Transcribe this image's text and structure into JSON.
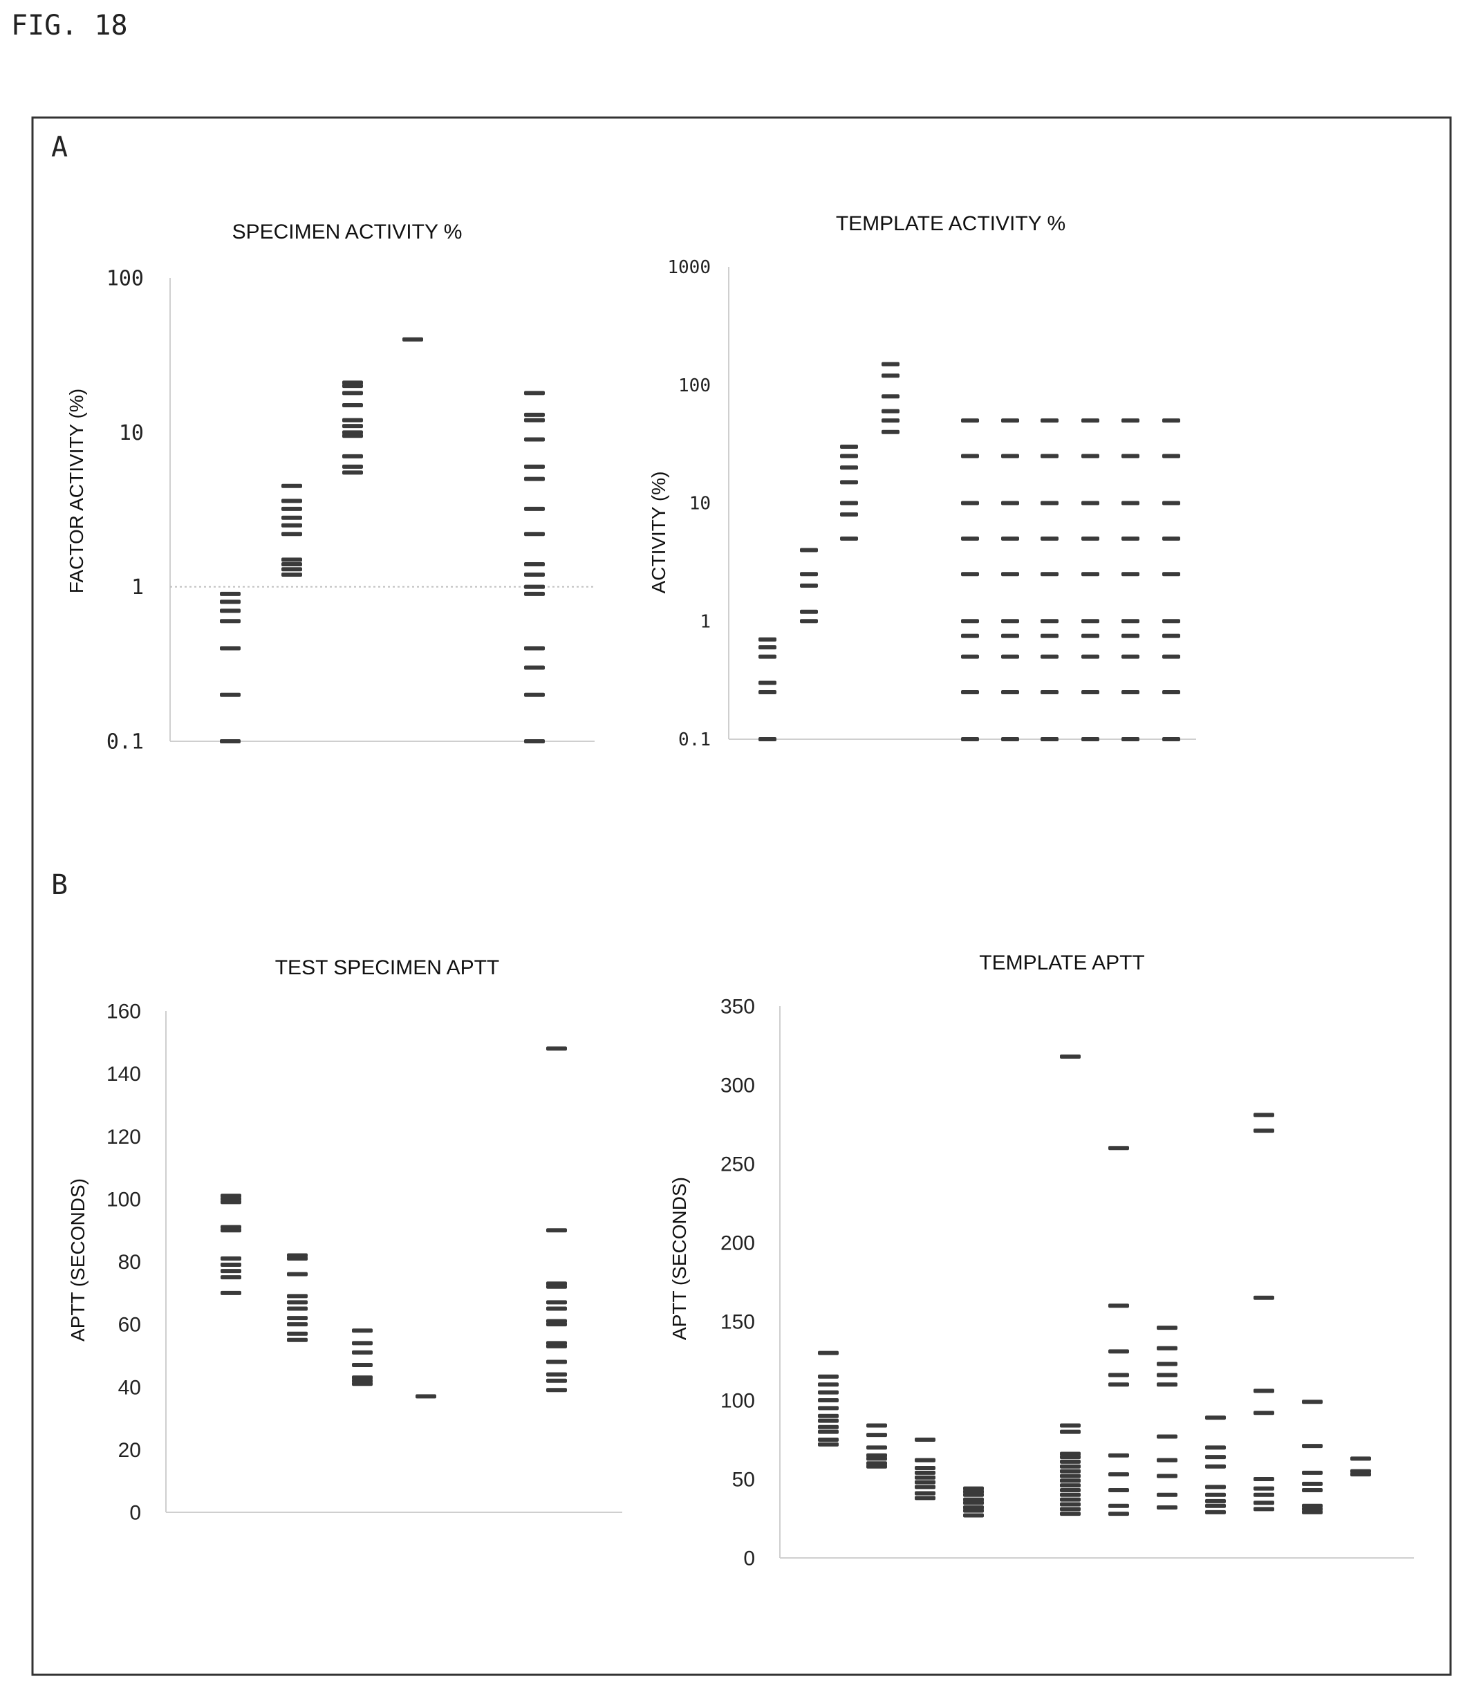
{
  "figure_label": "FIG. 18",
  "panels": [
    {
      "letter": "A"
    },
    {
      "letter": "B"
    }
  ],
  "chart_data": [
    {
      "type": "scatter",
      "title": "SPECIMEN ACTIVITY %",
      "ylabel": "FACTOR ACTIVITY (%)",
      "xlabel": "",
      "yscale": "log",
      "ylim": [
        0.1,
        100
      ],
      "yticks": [
        "0.1",
        "1",
        "10",
        "100"
      ],
      "grid": false,
      "reference_line": 1,
      "groups": [
        {
          "values": [
            0.1,
            0.2,
            0.4,
            0.6,
            0.7,
            0.8,
            0.9
          ]
        },
        {
          "values": [
            1.2,
            1.3,
            1.4,
            1.5,
            2.2,
            2.5,
            2.8,
            3.2,
            3.6,
            4.5
          ]
        },
        {
          "values": [
            5.5,
            6,
            7,
            9.5,
            10,
            11,
            12,
            15,
            18,
            20,
            21
          ]
        },
        {
          "values": [
            40
          ]
        },
        {
          "values": []
        },
        {
          "values": [
            0.1,
            0.2,
            0.3,
            0.4,
            0.9,
            1,
            1.2,
            1.4,
            2.2,
            3.2,
            5,
            6,
            9,
            12,
            13,
            18
          ]
        }
      ]
    },
    {
      "type": "scatter",
      "title": "TEMPLATE ACTIVITY %",
      "ylabel": "ACTIVITY (%)",
      "xlabel": "",
      "yscale": "log",
      "ylim": [
        0.1,
        1000
      ],
      "yticks": [
        "0.1",
        "1",
        "10",
        "100",
        "1000"
      ],
      "grid": false,
      "groups": [
        {
          "values": [
            0.1,
            0.25,
            0.3,
            0.5,
            0.6,
            0.7
          ]
        },
        {
          "values": [
            1,
            1.2,
            2,
            2.5,
            4
          ]
        },
        {
          "values": [
            5,
            8,
            10,
            15,
            20,
            25,
            30
          ]
        },
        {
          "values": [
            40,
            50,
            60,
            80,
            120,
            150
          ]
        },
        {
          "values": []
        },
        {
          "values": [
            0.1,
            0.25,
            0.5,
            0.75,
            1,
            2.5,
            5,
            10,
            25,
            50
          ]
        },
        {
          "values": [
            0.1,
            0.25,
            0.5,
            0.75,
            1,
            2.5,
            5,
            10,
            25,
            50
          ]
        },
        {
          "values": [
            0.1,
            0.25,
            0.5,
            0.75,
            1,
            2.5,
            5,
            10,
            25,
            50
          ]
        },
        {
          "values": [
            0.1,
            0.25,
            0.5,
            0.75,
            1,
            2.5,
            5,
            10,
            25,
            50
          ]
        },
        {
          "values": [
            0.1,
            0.25,
            0.5,
            0.75,
            1,
            2.5,
            5,
            10,
            25,
            50
          ]
        },
        {
          "values": [
            0.1,
            0.25,
            0.5,
            0.75,
            1,
            2.5,
            5,
            10,
            25,
            50
          ]
        }
      ]
    },
    {
      "type": "scatter",
      "title": "TEST SPECIMEN APTT",
      "ylabel": "APTT (SECONDS)",
      "xlabel": "",
      "yscale": "linear",
      "ylim": [
        0,
        160
      ],
      "yticks": [
        "0",
        "20",
        "40",
        "60",
        "80",
        "100",
        "120",
        "140",
        "160"
      ],
      "grid": false,
      "groups": [
        {
          "values": [
            70,
            75,
            77,
            79,
            81,
            90,
            91,
            99,
            100,
            101
          ]
        },
        {
          "values": [
            55,
            57,
            60,
            62,
            65,
            67,
            69,
            76,
            81,
            82
          ]
        },
        {
          "values": [
            41,
            42,
            43,
            47,
            51,
            54,
            58
          ]
        },
        {
          "values": [
            37
          ]
        },
        {
          "values": []
        },
        {
          "values": [
            39,
            42,
            44,
            48,
            53,
            54,
            60,
            61,
            65,
            67,
            72,
            73,
            90,
            148
          ]
        }
      ]
    },
    {
      "type": "scatter",
      "title": "TEMPLATE APTT",
      "ylabel": "APTT (SECONDS)",
      "xlabel": "",
      "yscale": "linear",
      "ylim": [
        0,
        350
      ],
      "yticks": [
        "0",
        "50",
        "100",
        "150",
        "200",
        "250",
        "300",
        "350"
      ],
      "grid": false,
      "groups": [
        {
          "values": [
            72,
            75,
            80,
            83,
            87,
            90,
            95,
            100,
            105,
            110,
            115,
            130
          ]
        },
        {
          "values": [
            58,
            60,
            63,
            65,
            70,
            78,
            84
          ]
        },
        {
          "values": [
            38,
            41,
            45,
            48,
            51,
            54,
            57,
            62,
            75
          ]
        },
        {
          "values": [
            27,
            30,
            32,
            35,
            37,
            40,
            42,
            44
          ]
        },
        {
          "values": []
        },
        {
          "values": [
            28,
            31,
            34,
            37,
            40,
            43,
            46,
            49,
            52,
            55,
            58,
            61,
            64,
            66,
            80,
            84,
            318
          ]
        },
        {
          "values": [
            28,
            33,
            43,
            53,
            65,
            110,
            116,
            131,
            160,
            260
          ]
        },
        {
          "values": [
            32,
            40,
            52,
            62,
            77,
            110,
            116,
            123,
            133,
            146
          ]
        },
        {
          "values": [
            29,
            33,
            36,
            40,
            45,
            58,
            64,
            70,
            89
          ]
        },
        {
          "values": [
            31,
            35,
            40,
            44,
            50,
            92,
            106,
            165,
            271,
            281
          ]
        },
        {
          "values": [
            29,
            31,
            33,
            43,
            47,
            54,
            71,
            99
          ]
        },
        {
          "values": [
            53,
            55,
            63
          ]
        }
      ]
    }
  ]
}
